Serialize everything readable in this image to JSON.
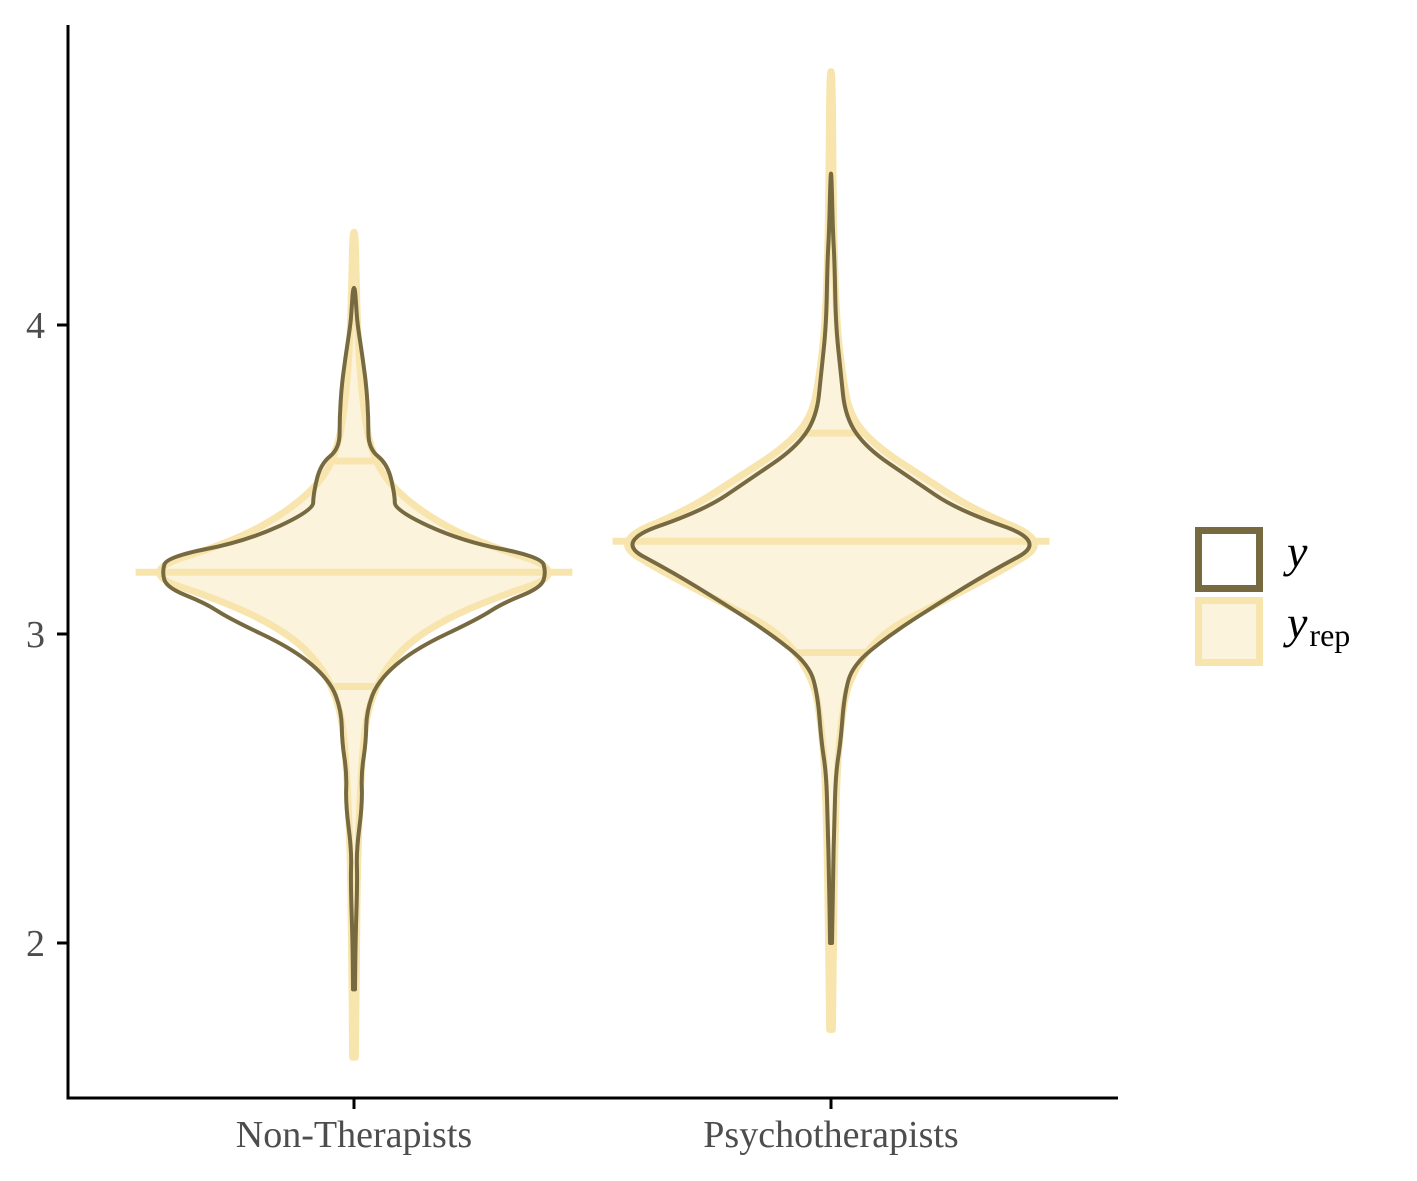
{
  "chart_data": {
    "type": "violin",
    "title": "",
    "xlabel": "",
    "ylabel": "",
    "categories": [
      "Non-Therapists",
      "Psychotherapists"
    ],
    "y_ticks": [
      "2",
      "3",
      "4"
    ],
    "ylim": [
      1.5,
      4.98
    ],
    "grid": false,
    "legend": {
      "position": "right",
      "entries": [
        {
          "symbol": "y",
          "subscript": "",
          "style": "outline"
        },
        {
          "symbol": "y",
          "subscript": "rep",
          "style": "fill"
        }
      ]
    },
    "colors": {
      "y_outline": "#776a40",
      "yrep_fill": "#fbf3dc",
      "yrep_outline": "#f8e5ae",
      "axis": "#000000",
      "tick_label": "#4d4d4d"
    },
    "series": [
      {
        "key": "yrep",
        "groups": [
          {
            "category": "Non-Therapists",
            "min": 1.63,
            "max": 4.3,
            "quantiles": [
              2.83,
              3.2,
              3.56
            ],
            "profile": [
              [
                1.63,
                0.006
              ],
              [
                2.0,
                0.01
              ],
              [
                2.3,
                0.016
              ],
              [
                2.55,
                0.03
              ],
              [
                2.7,
                0.045
              ],
              [
                2.8,
                0.075
              ],
              [
                2.9,
                0.14
              ],
              [
                3.0,
                0.27
              ],
              [
                3.1,
                0.52
              ],
              [
                3.2,
                0.91
              ],
              [
                3.3,
                0.5
              ],
              [
                3.4,
                0.27
              ],
              [
                3.5,
                0.13
              ],
              [
                3.6,
                0.07
              ],
              [
                3.7,
                0.045
              ],
              [
                3.85,
                0.025
              ],
              [
                4.0,
                0.014
              ],
              [
                4.15,
                0.009
              ],
              [
                4.3,
                0.005
              ]
            ]
          },
          {
            "category": "Psychotherapists",
            "min": 1.72,
            "max": 4.82,
            "quantiles": [
              2.94,
              3.3,
              3.65
            ],
            "profile": [
              [
                1.72,
                0.006
              ],
              [
                2.0,
                0.01
              ],
              [
                2.3,
                0.016
              ],
              [
                2.55,
                0.025
              ],
              [
                2.7,
                0.04
              ],
              [
                2.85,
                0.07
              ],
              [
                3.0,
                0.2
              ],
              [
                3.1,
                0.45
              ],
              [
                3.2,
                0.7
              ],
              [
                3.3,
                0.91
              ],
              [
                3.4,
                0.6
              ],
              [
                3.5,
                0.4
              ],
              [
                3.6,
                0.2
              ],
              [
                3.7,
                0.08
              ],
              [
                3.85,
                0.045
              ],
              [
                4.0,
                0.025
              ],
              [
                4.2,
                0.014
              ],
              [
                4.5,
                0.008
              ],
              [
                4.82,
                0.005
              ]
            ]
          }
        ]
      },
      {
        "key": "y",
        "groups": [
          {
            "category": "Non-Therapists",
            "min": 1.85,
            "max": 4.12,
            "profile": [
              [
                1.85,
                0.004
              ],
              [
                2.0,
                0.006
              ],
              [
                2.2,
                0.014
              ],
              [
                2.3,
                0.01
              ],
              [
                2.45,
                0.035
              ],
              [
                2.55,
                0.03
              ],
              [
                2.65,
                0.05
              ],
              [
                2.75,
                0.052
              ],
              [
                2.85,
                0.1
              ],
              [
                2.95,
                0.25
              ],
              [
                3.05,
                0.52
              ],
              [
                3.1,
                0.62
              ],
              [
                3.15,
                0.78
              ],
              [
                3.2,
                0.8
              ],
              [
                3.25,
                0.78
              ],
              [
                3.3,
                0.45
              ],
              [
                3.4,
                0.17
              ],
              [
                3.45,
                0.17
              ],
              [
                3.55,
                0.14
              ],
              [
                3.6,
                0.06
              ],
              [
                3.7,
                0.06
              ],
              [
                3.8,
                0.052
              ],
              [
                3.9,
                0.035
              ],
              [
                4.0,
                0.015
              ],
              [
                4.05,
                0.01
              ],
              [
                4.12,
                0.004
              ]
            ]
          },
          {
            "category": "Psychotherapists",
            "min": 2.0,
            "max": 4.49,
            "profile": [
              [
                2.0,
                0.004
              ],
              [
                2.2,
                0.008
              ],
              [
                2.4,
                0.014
              ],
              [
                2.55,
                0.02
              ],
              [
                2.65,
                0.04
              ],
              [
                2.8,
                0.055
              ],
              [
                2.9,
                0.09
              ],
              [
                3.0,
                0.25
              ],
              [
                3.1,
                0.45
              ],
              [
                3.2,
                0.66
              ],
              [
                3.3,
                0.9
              ],
              [
                3.4,
                0.53
              ],
              [
                3.5,
                0.34
              ],
              [
                3.6,
                0.15
              ],
              [
                3.7,
                0.06
              ],
              [
                3.85,
                0.04
              ],
              [
                4.0,
                0.02
              ],
              [
                4.2,
                0.015
              ],
              [
                4.3,
                0.008
              ],
              [
                4.49,
                0.002
              ]
            ]
          }
        ]
      }
    ]
  }
}
